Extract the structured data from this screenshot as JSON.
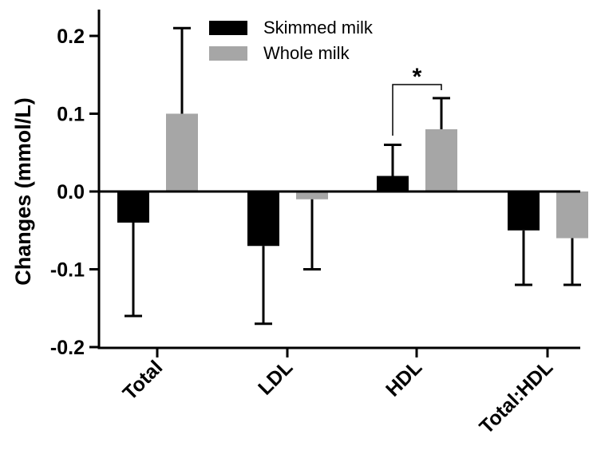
{
  "chart_data": {
    "type": "bar",
    "ylabel": "Changes (mmol/L)",
    "ylim": [
      -0.2,
      0.25
    ],
    "yticks": [
      "-0.2",
      "-0.1",
      "0.0",
      "0.1",
      "0.2"
    ],
    "ytick_values": [
      -0.2,
      -0.1,
      0.0,
      0.1,
      0.2
    ],
    "categories": [
      "Total",
      "LDL",
      "HDL",
      "Total:HDL"
    ],
    "series": [
      {
        "name": "Skimmed milk",
        "color": "#000000",
        "values": [
          -0.04,
          -0.07,
          0.02,
          -0.05
        ],
        "errors": [
          0.12,
          0.1,
          0.04,
          0.07
        ]
      },
      {
        "name": "Whole milk",
        "color": "#a6a6a6",
        "values": [
          0.1,
          -0.01,
          0.08,
          -0.06
        ],
        "errors": [
          0.11,
          0.09,
          0.04,
          0.06
        ]
      }
    ],
    "legend_position": "top-center",
    "grid": false,
    "annotations": [
      {
        "text": "*",
        "category": "HDL",
        "between_series": [
          "Skimmed milk",
          "Whole milk"
        ]
      }
    ]
  }
}
